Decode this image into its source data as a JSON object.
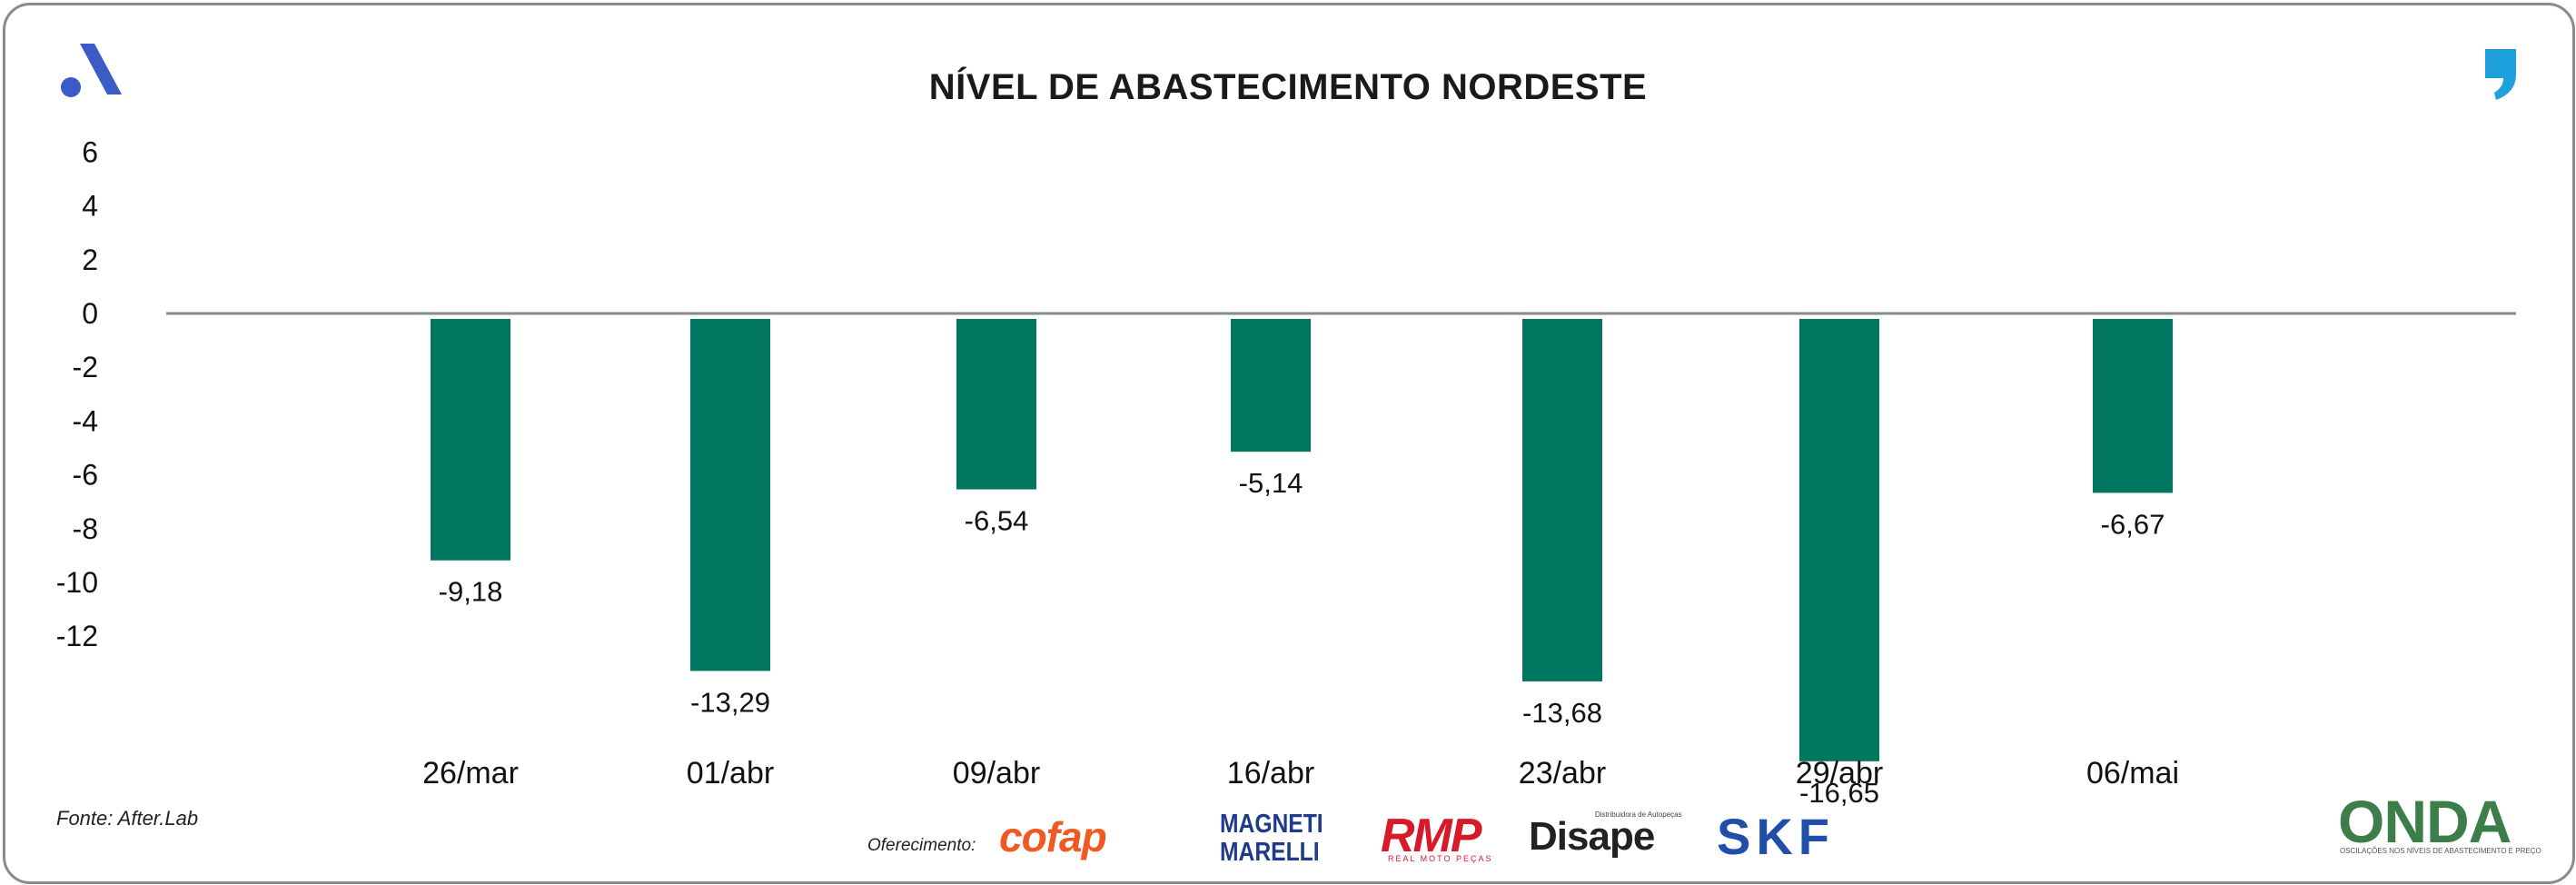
{
  "chart_data": {
    "type": "bar",
    "title": "NÍVEL DE ABASTECIMENTO NORDESTE",
    "categories": [
      "26/mar",
      "01/abr",
      "09/abr",
      "16/abr",
      "23/abr",
      "29/abr",
      "06/mai"
    ],
    "values": [
      -9.18,
      -13.29,
      -6.54,
      -5.14,
      -13.68,
      -16.65,
      -6.67
    ],
    "value_labels": [
      "-9,18",
      "-13,29",
      "-6,54",
      "-5,14",
      "-13,68",
      "-16,65",
      "-6,67"
    ],
    "yticks": [
      6,
      4,
      2,
      0,
      -2,
      -4,
      -6,
      -8,
      -10,
      -12
    ],
    "ytick_labels": [
      "6",
      "4",
      "2",
      "0",
      "-2",
      "-4",
      "-6",
      "-8",
      "-10",
      "-12"
    ],
    "ylim": [
      -12,
      6
    ],
    "xlabel": "",
    "ylabel": "",
    "grid": false,
    "bar_color": "#007660",
    "zero_line_color": "#8a8a8a"
  },
  "footer": {
    "source": "Fonte: After.Lab",
    "offer_label": "Oferecimento:",
    "sponsors": [
      "cofap",
      "MAGNETI",
      "MARELLI",
      "RMP",
      "REAL MOTO PEÇAS",
      "Disape",
      "Distribuidora de Autopeças",
      "SKF",
      "ONDA",
      "OSCILAÇÕES NOS NÍVEIS DE ABASTECIMENTO E PREÇO"
    ]
  },
  "colors": {
    "accent": "#3b5bc6",
    "quote": "#1ea0dc",
    "frame": "#8a8a8a"
  }
}
